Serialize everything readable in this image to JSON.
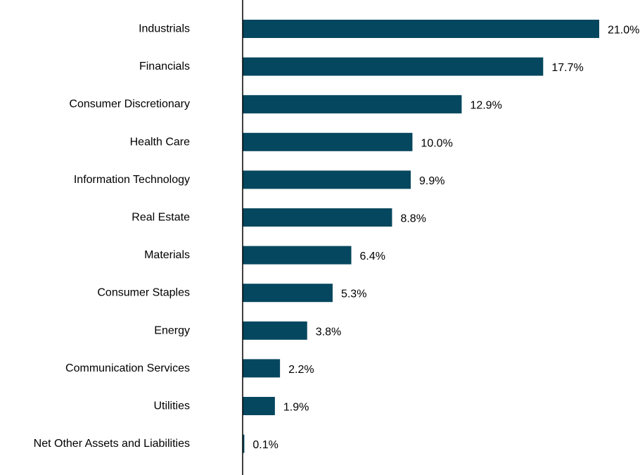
{
  "chart_data": {
    "type": "bar",
    "orientation": "horizontal",
    "categories": [
      "Industrials",
      "Financials",
      "Consumer Discretionary",
      "Health Care",
      "Information Technology",
      "Real Estate",
      "Materials",
      "Consumer Staples",
      "Energy",
      "Communication Services",
      "Utilities",
      "Net Other Assets and Liabilities"
    ],
    "values": [
      21.0,
      17.7,
      12.9,
      10.0,
      9.9,
      8.8,
      6.4,
      5.3,
      3.8,
      2.2,
      1.9,
      0.1
    ],
    "value_labels": [
      "21.0%",
      "17.7%",
      "12.9%",
      "10.0%",
      "9.9%",
      "8.8%",
      "6.4%",
      "5.3%",
      "3.8%",
      "2.2%",
      "1.9%",
      "0.1%"
    ],
    "title": "",
    "xlabel": "",
    "ylabel": "",
    "xlim": [
      0,
      21.0
    ],
    "grid": false,
    "legend": "none",
    "bar_color": "#05475E",
    "axis_color": "#000000"
  }
}
